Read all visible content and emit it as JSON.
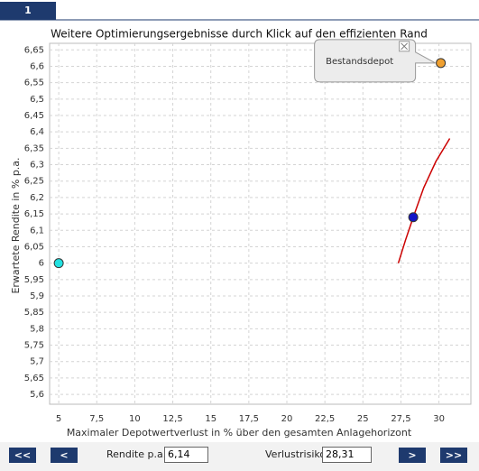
{
  "tab": "1",
  "chart_data": {
    "type": "scatter",
    "title": "Weitere Optimierungsergebnisse durch Klick auf den effizienten Rand",
    "x_label": "Maximaler Depotwertverlust in % über den gesamten Anlagehorizont",
    "y_label": "Erwartete Rendite in % p.a.",
    "xlim": [
      4.4,
      32.1
    ],
    "ylim": [
      5.57,
      6.67
    ],
    "grid": true,
    "xticks": [
      5,
      {
        "value": 7.5,
        "label": "7,5"
      },
      10,
      {
        "value": 12.5,
        "label": "12,5"
      },
      15,
      {
        "value": 17.5,
        "label": "17,5"
      },
      20,
      {
        "value": 22.5,
        "label": "22,5"
      },
      25,
      {
        "value": 27.5,
        "label": "27,5"
      },
      30
    ],
    "yticks": [
      {
        "value": 5.6,
        "label": "5,6"
      },
      {
        "value": 5.65,
        "label": "5,65"
      },
      {
        "value": 5.7,
        "label": "5,7"
      },
      {
        "value": 5.75,
        "label": "5,75"
      },
      {
        "value": 5.8,
        "label": "5,8"
      },
      {
        "value": 5.85,
        "label": "5,85"
      },
      {
        "value": 5.9,
        "label": "5,9"
      },
      {
        "value": 5.95,
        "label": "5,95"
      },
      6,
      {
        "value": 6.05,
        "label": "6,05"
      },
      {
        "value": 6.1,
        "label": "6,1"
      },
      {
        "value": 6.15,
        "label": "6,15"
      },
      {
        "value": 6.2,
        "label": "6,2"
      },
      {
        "value": 6.25,
        "label": "6,25"
      },
      {
        "value": 6.3,
        "label": "6,3"
      },
      {
        "value": 6.35,
        "label": "6,35"
      },
      {
        "value": 6.4,
        "label": "6,4"
      },
      {
        "value": 6.45,
        "label": "6,45"
      },
      {
        "value": 6.5,
        "label": "6,5"
      },
      {
        "value": 6.55,
        "label": "6,55"
      },
      {
        "value": 6.6,
        "label": "6,6"
      },
      {
        "value": 6.65,
        "label": "6,65"
      }
    ],
    "series": [
      {
        "mode": "line",
        "color": "#cc0000",
        "x": [
          27.33,
          27.8,
          28.31,
          29.0,
          29.8,
          30.71
        ],
        "values": [
          6.0,
          6.07,
          6.14,
          6.23,
          6.31,
          6.38
        ]
      },
      {
        "mode": "point",
        "color": "#22e0e0",
        "x": [
          5
        ],
        "values": [
          6.0
        ]
      },
      {
        "mode": "point",
        "color": "#1414c8",
        "x": [
          28.31
        ],
        "values": [
          6.14
        ]
      },
      {
        "mode": "point",
        "color": "#f0a030",
        "x": [
          30.12
        ],
        "values": [
          6.61
        ]
      }
    ],
    "annotation": "Bestandsdepot"
  },
  "controls": {
    "first": "<<",
    "prev": "<",
    "rendite_label": "Rendite p.a.:",
    "rendite_value": "6,14",
    "risk_label": "Verlustrisiko:",
    "risk_value": "28,31",
    "next": ">",
    "last": ">>"
  }
}
